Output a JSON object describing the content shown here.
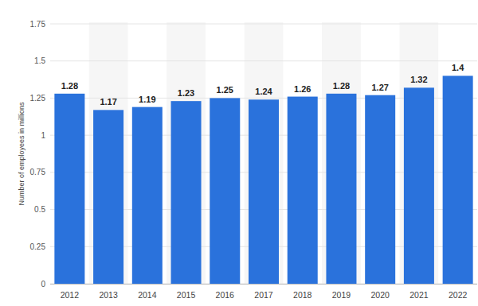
{
  "chart_data": {
    "type": "bar",
    "y_label": "Number of employees in millions",
    "categories": [
      "2012",
      "2013",
      "2014",
      "2015",
      "2016",
      "2017",
      "2018",
      "2019",
      "2020",
      "2021",
      "2022"
    ],
    "values": [
      1.28,
      1.17,
      1.19,
      1.23,
      1.25,
      1.24,
      1.26,
      1.28,
      1.27,
      1.32,
      1.4
    ],
    "color": "#2a72dc",
    "ylim": [
      0,
      1.75
    ],
    "yticks": [
      0,
      0.25,
      0.5,
      0.75,
      1,
      1.25,
      1.5,
      1.75
    ],
    "grid": true,
    "data_labels": true
  }
}
